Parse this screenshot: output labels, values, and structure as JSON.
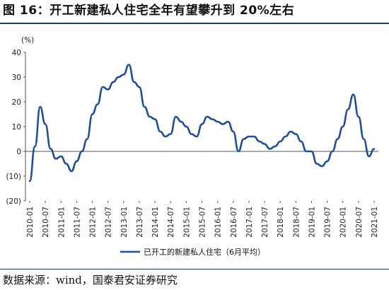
{
  "title": "图 16：开工新建私人住宅全年有望攀升到 20%左右",
  "source": "数据来源：wind，国泰君安证券研究",
  "chart_data": {
    "type": "line",
    "unit_label": "(%)",
    "ylim": [
      -20,
      40
    ],
    "y_ticks": [
      {
        "value": 40,
        "label": "40"
      },
      {
        "value": 30,
        "label": "30"
      },
      {
        "value": 20,
        "label": "20"
      },
      {
        "value": 10,
        "label": "10"
      },
      {
        "value": 0,
        "label": "0"
      },
      {
        "value": -10,
        "label": "(10)"
      },
      {
        "value": -20,
        "label": "(20)"
      }
    ],
    "x_ticks": [
      "2010-01",
      "2010-07",
      "2011-01",
      "2011-07",
      "2012-01",
      "2012-07",
      "2013-01",
      "2013-07",
      "2014-01",
      "2014-07",
      "2015-01",
      "2015-07",
      "2016-01",
      "2016-07",
      "2017-01",
      "2017-07",
      "2018-01",
      "2018-07",
      "2019-01",
      "2019-07",
      "2020-01",
      "2020-07",
      "2021-01"
    ],
    "grid": false,
    "legend_position": "bottom-center",
    "color": "#1f4e9c",
    "series": [
      {
        "name": "已开工的新建私人住宅（6月平均）",
        "x": [
          "2010-01",
          "2010-03",
          "2010-05",
          "2010-07",
          "2010-09",
          "2010-11",
          "2011-01",
          "2011-03",
          "2011-05",
          "2011-07",
          "2011-09",
          "2011-11",
          "2012-01",
          "2012-03",
          "2012-05",
          "2012-07",
          "2012-09",
          "2012-11",
          "2013-01",
          "2013-03",
          "2013-05",
          "2013-07",
          "2013-09",
          "2013-11",
          "2014-01",
          "2014-03",
          "2014-05",
          "2014-07",
          "2014-09",
          "2014-11",
          "2015-01",
          "2015-03",
          "2015-05",
          "2015-07",
          "2015-09",
          "2015-11",
          "2016-01",
          "2016-03",
          "2016-05",
          "2016-07",
          "2016-09",
          "2016-11",
          "2017-01",
          "2017-03",
          "2017-05",
          "2017-07",
          "2017-09",
          "2017-11",
          "2018-01",
          "2018-03",
          "2018-05",
          "2018-07",
          "2018-09",
          "2018-11",
          "2019-01",
          "2019-03",
          "2019-05",
          "2019-07",
          "2019-09",
          "2019-11",
          "2020-01",
          "2020-03",
          "2020-05",
          "2020-07",
          "2020-09",
          "2020-11",
          "2021-01"
        ],
        "values": [
          -12,
          2,
          18,
          11,
          1,
          -3,
          -2,
          -5,
          -8,
          -4,
          0,
          5,
          15,
          19,
          26,
          25,
          28,
          30,
          31,
          35,
          28,
          26,
          18,
          14,
          13,
          8,
          6,
          7,
          14,
          12,
          10,
          7,
          6,
          11,
          14,
          13,
          12,
          11,
          12,
          8,
          0,
          5,
          6,
          6,
          4,
          3,
          1,
          2,
          4,
          6,
          8,
          7,
          4,
          0,
          0,
          -5,
          -6,
          -4,
          0,
          5,
          10,
          17,
          23,
          14,
          5,
          -2,
          1
        ]
      }
    ]
  }
}
